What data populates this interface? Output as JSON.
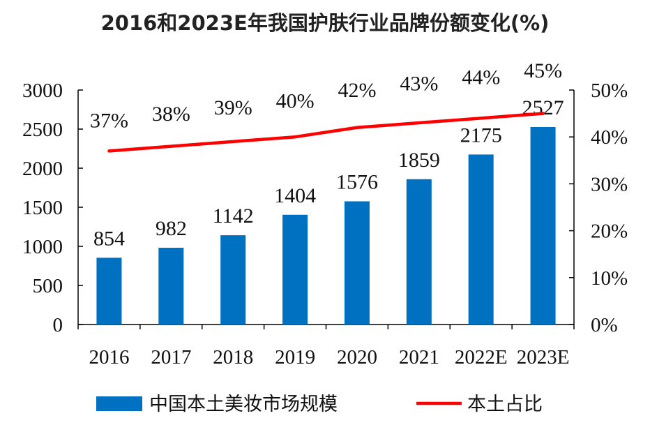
{
  "chart_data": {
    "type": "bar",
    "title": "2016和2023E年我国护肤行业品牌份额变化(%)",
    "categories": [
      "2016",
      "2017",
      "2018",
      "2019",
      "2020",
      "2021",
      "2022E",
      "2023E"
    ],
    "series": [
      {
        "name": "中国本土美妆市场规模",
        "type": "bar",
        "axis": "left",
        "values": [
          854,
          982,
          1142,
          1404,
          1576,
          1859,
          2175,
          2527
        ],
        "color": "#0070C0"
      },
      {
        "name": "本土占比",
        "type": "line",
        "axis": "right",
        "values": [
          37,
          38,
          39,
          40,
          42,
          43,
          44,
          45
        ],
        "labels": [
          "37%",
          "38%",
          "39%",
          "40%",
          "42%",
          "43%",
          "44%",
          "45%"
        ],
        "color": "#FF0000"
      }
    ],
    "y_left": {
      "ylim": [
        0,
        3000
      ],
      "ticks": [
        "0",
        "500",
        "1000",
        "1500",
        "2000",
        "2500",
        "3000"
      ]
    },
    "y_right": {
      "ylim": [
        0,
        50
      ],
      "ticks": [
        "0%",
        "10%",
        "20%",
        "30%",
        "40%",
        "50%"
      ]
    },
    "grid": false,
    "legend_position": "bottom"
  }
}
